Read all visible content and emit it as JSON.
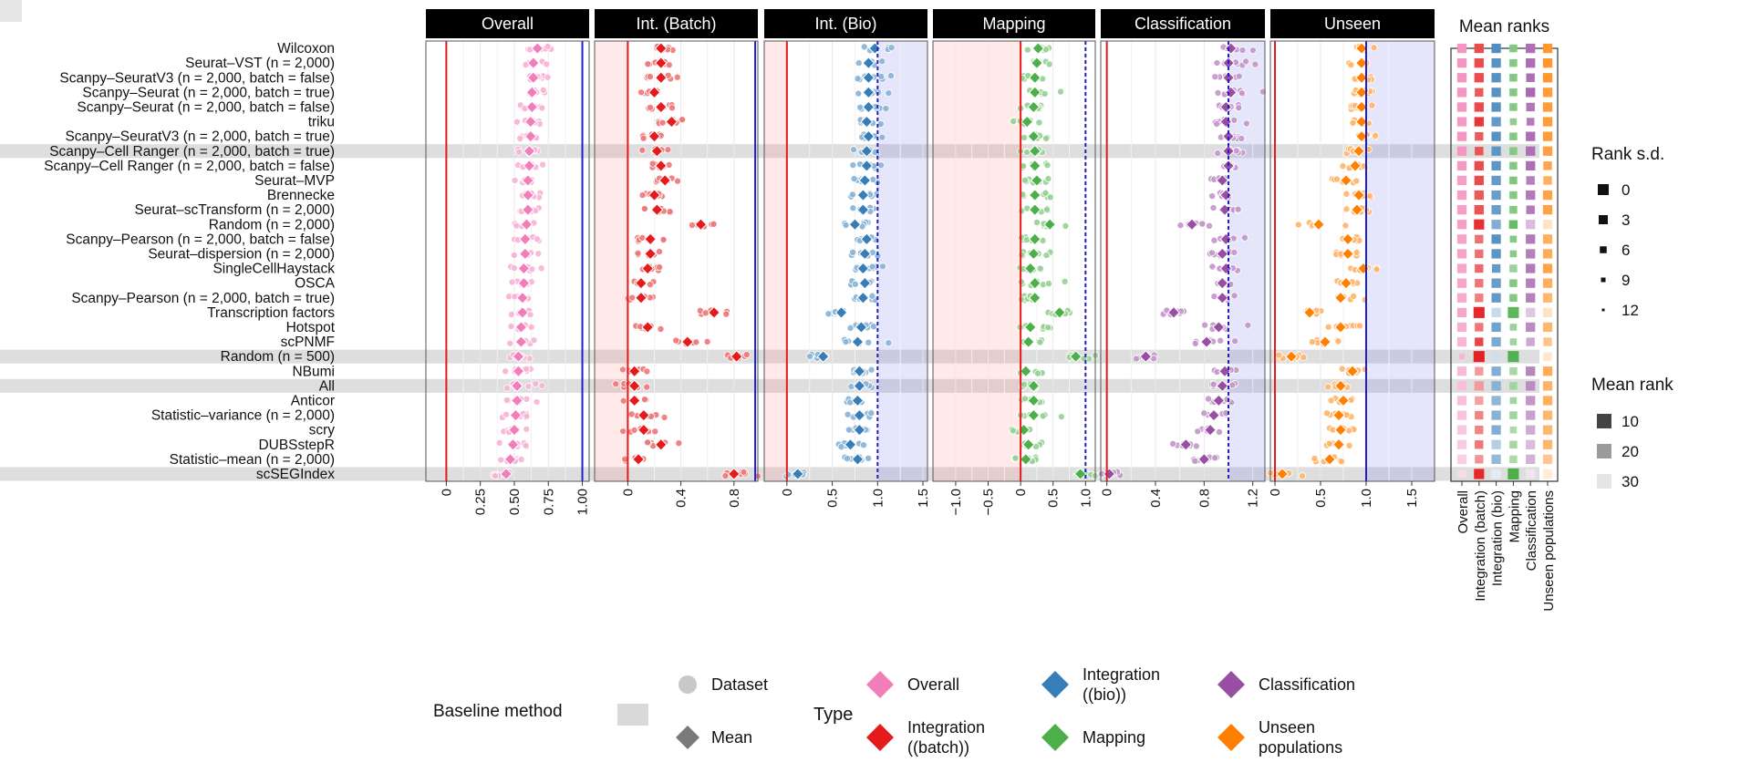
{
  "chart_data": {
    "type": "scatter",
    "methods": [
      "Wilcoxon",
      "Seurat–VST (n = 2,000)",
      "Scanpy–SeuratV3 (n = 2,000, batch = false)",
      "Scanpy–Seurat (n = 2,000, batch = true)",
      "Scanpy–Seurat (n = 2,000, batch = false)",
      "triku",
      "Scanpy–SeuratV3 (n = 2,000, batch = true)",
      "Scanpy–Cell Ranger (n = 2,000, batch = true)",
      "Scanpy–Cell Ranger (n = 2,000, batch = false)",
      "Seurat–MVP",
      "Brennecke",
      "Seurat–scTransform (n = 2,000)",
      "Random (n = 2,000)",
      "Scanpy–Pearson (n = 2,000, batch = false)",
      "Seurat–dispersion (n = 2,000)",
      "SingleCellHaystack",
      "OSCA",
      "Scanpy–Pearson (n = 2,000, batch = true)",
      "Transcription factors",
      "Hotspot",
      "scPNMF",
      "Random (n = 500)",
      "NBumi",
      "All",
      "Anticor",
      "Statistic–variance (n = 2,000)",
      "scry",
      "DUBSstepR",
      "Statistic–mean (n = 2,000)",
      "scSEGIndex"
    ],
    "baseline_methods": [
      "Scanpy–Cell Ranger (n = 2,000, batch = true)",
      "Random (n = 500)",
      "All",
      "scSEGIndex"
    ],
    "panels": [
      {
        "title": "Overall",
        "color": "#F17EB8",
        "xlim": [
          -0.15,
          1.05
        ],
        "ticks": [
          0,
          0.25,
          0.5,
          0.75,
          1.0
        ],
        "tick_labels": [
          "0",
          "0.25",
          "0.50",
          "0.75",
          "1.00"
        ],
        "red_line": 0,
        "blue_line": 1.0,
        "dashed": false,
        "shade": [],
        "means": [
          0.67,
          0.64,
          0.64,
          0.63,
          0.63,
          0.62,
          0.62,
          0.61,
          0.61,
          0.6,
          0.6,
          0.6,
          0.59,
          0.58,
          0.58,
          0.57,
          0.57,
          0.56,
          0.56,
          0.55,
          0.55,
          0.53,
          0.53,
          0.52,
          0.52,
          0.51,
          0.5,
          0.49,
          0.47,
          0.44
        ]
      },
      {
        "title": "Int. (Batch)",
        "color": "#E41A1C",
        "xlim": [
          -0.25,
          0.98
        ],
        "ticks": [
          0,
          0.4,
          0.8
        ],
        "tick_labels": [
          "0",
          "0.4",
          "0.8"
        ],
        "red_line": 0,
        "blue_line": 0.96,
        "dashed": false,
        "shade": [
          -0.25,
          0
        ],
        "means": [
          0.25,
          0.25,
          0.25,
          0.2,
          0.25,
          0.33,
          0.2,
          0.22,
          0.25,
          0.28,
          0.2,
          0.22,
          0.55,
          0.17,
          0.17,
          0.15,
          0.1,
          0.1,
          0.65,
          0.15,
          0.45,
          0.82,
          0.05,
          0.05,
          0.05,
          0.12,
          0.12,
          0.25,
          0.08,
          0.8
        ]
      },
      {
        "title": "Int. (Bio)",
        "color": "#377EB8",
        "xlim": [
          -0.25,
          1.55
        ],
        "ticks": [
          0,
          0.5,
          1.0,
          1.5
        ],
        "tick_labels": [
          "0",
          "0.5",
          "1.0",
          "1.5"
        ],
        "red_line": 0,
        "blue_line": 1.0,
        "dashed": true,
        "shade": [
          -0.25,
          0,
          1.0,
          1.55
        ],
        "means": [
          0.97,
          0.9,
          0.9,
          0.9,
          0.9,
          0.88,
          0.9,
          0.88,
          0.88,
          0.86,
          0.84,
          0.84,
          0.75,
          0.88,
          0.86,
          0.84,
          0.86,
          0.84,
          0.6,
          0.82,
          0.78,
          0.4,
          0.8,
          0.8,
          0.78,
          0.8,
          0.8,
          0.7,
          0.78,
          0.12
        ]
      },
      {
        "title": "Mapping",
        "color": "#4DAF4A",
        "xlim": [
          -1.35,
          1.15
        ],
        "ticks": [
          -1.0,
          -0.5,
          0,
          0.5,
          1.0
        ],
        "tick_labels": [
          "−1.0",
          "−0.5",
          "0",
          "0.5",
          "1.0"
        ],
        "red_line": 0,
        "blue_line": 1.0,
        "dashed": true,
        "shade": [
          -1.35,
          0
        ],
        "means": [
          0.27,
          0.25,
          0.22,
          0.22,
          0.2,
          0.1,
          0.2,
          0.22,
          0.22,
          0.25,
          0.22,
          0.22,
          0.45,
          0.22,
          0.2,
          0.15,
          0.22,
          0.22,
          0.6,
          0.15,
          0.12,
          0.85,
          0.08,
          0.2,
          0.2,
          0.2,
          0.05,
          0.12,
          0.08,
          0.92
        ]
      },
      {
        "title": "Classification",
        "color": "#984EA3",
        "xlim": [
          -0.05,
          1.3
        ],
        "ticks": [
          0,
          0.4,
          0.8,
          1.2
        ],
        "tick_labels": [
          "0",
          "0.4",
          "0.8",
          "1.2"
        ],
        "red_line": 0,
        "blue_line": 1.0,
        "dashed": true,
        "shade": [
          1.0,
          1.3
        ],
        "means": [
          1.02,
          1.0,
          1.0,
          1.02,
          0.98,
          0.98,
          1.0,
          1.0,
          1.0,
          0.95,
          0.98,
          0.97,
          0.7,
          0.98,
          0.95,
          0.98,
          0.95,
          0.95,
          0.55,
          0.92,
          0.82,
          0.32,
          0.97,
          0.95,
          0.92,
          0.88,
          0.85,
          0.65,
          0.8,
          0.02
        ]
      },
      {
        "title": "Unseen",
        "color": "#FF7F00",
        "xlim": [
          -0.05,
          1.75
        ],
        "ticks": [
          0,
          0.5,
          1.0,
          1.5
        ],
        "tick_labels": [
          "0",
          "0.5",
          "1.0",
          "1.5"
        ],
        "red_line": 0,
        "blue_line": 1.0,
        "dashed": false,
        "shade": [
          1.0,
          1.75
        ],
        "means": [
          0.95,
          0.95,
          0.95,
          0.95,
          0.95,
          0.95,
          0.95,
          0.92,
          0.88,
          0.78,
          0.92,
          0.9,
          0.48,
          0.8,
          0.8,
          0.97,
          0.78,
          0.72,
          0.38,
          0.72,
          0.55,
          0.18,
          0.85,
          0.72,
          0.75,
          0.7,
          0.72,
          0.7,
          0.6,
          0.08
        ]
      }
    ],
    "mean_ranks": {
      "title": "Mean ranks",
      "columns": [
        "Overall",
        "Integration (batch)",
        "Integration (bio)",
        "Mapping",
        "Classification",
        "Unseen populations"
      ],
      "colors": [
        "#F17EB8",
        "#E41A1C",
        "#377EB8",
        "#4DAF4A",
        "#984EA3",
        "#FF7F00"
      ],
      "rank": [
        [
          8,
          9,
          6,
          12,
          8,
          8
        ],
        [
          8,
          9,
          7,
          12,
          8,
          8
        ],
        [
          8,
          9,
          7,
          12,
          8,
          8
        ],
        [
          8,
          11,
          7,
          12,
          7,
          9
        ],
        [
          8,
          9,
          7,
          12,
          9,
          9
        ],
        [
          9,
          6,
          9,
          14,
          10,
          9
        ],
        [
          8,
          11,
          7,
          12,
          8,
          9
        ],
        [
          8,
          10,
          8,
          12,
          8,
          10
        ],
        [
          9,
          9,
          8,
          12,
          8,
          11
        ],
        [
          10,
          9,
          9,
          11,
          11,
          14
        ],
        [
          10,
          11,
          10,
          12,
          10,
          11
        ],
        [
          10,
          10,
          10,
          12,
          10,
          11
        ],
        [
          10,
          5,
          14,
          7,
          22,
          27
        ],
        [
          11,
          14,
          7,
          12,
          10,
          14
        ],
        [
          11,
          14,
          8,
          13,
          11,
          13
        ],
        [
          12,
          13,
          9,
          16,
          10,
          11
        ],
        [
          12,
          15,
          10,
          12,
          11,
          14
        ],
        [
          13,
          16,
          9,
          12,
          11,
          16
        ],
        [
          12,
          4,
          25,
          5,
          24,
          27
        ],
        [
          14,
          15,
          11,
          16,
          13,
          16
        ],
        [
          16,
          8,
          13,
          17,
          18,
          19
        ],
        [
          15,
          3,
          26,
          3,
          28,
          28
        ],
        [
          17,
          20,
          14,
          18,
          12,
          13
        ],
        [
          18,
          20,
          15,
          17,
          13,
          15
        ],
        [
          18,
          21,
          16,
          17,
          15,
          14
        ],
        [
          19,
          17,
          15,
          17,
          17,
          16
        ],
        [
          20,
          17,
          14,
          19,
          19,
          16
        ],
        [
          21,
          15,
          22,
          18,
          22,
          16
        ],
        [
          22,
          19,
          17,
          19,
          20,
          20
        ],
        [
          25,
          4,
          30,
          2,
          30,
          30
        ]
      ],
      "sd": [
        [
          3,
          3,
          3,
          5,
          3,
          3
        ],
        [
          3,
          3,
          3,
          5,
          3,
          3
        ],
        [
          3,
          3,
          3,
          5,
          4,
          3
        ],
        [
          3,
          4,
          3,
          5,
          3,
          3
        ],
        [
          3,
          3,
          3,
          5,
          4,
          3
        ],
        [
          3,
          3,
          3,
          6,
          5,
          3
        ],
        [
          3,
          4,
          3,
          5,
          3,
          3
        ],
        [
          3,
          4,
          3,
          5,
          3,
          3
        ],
        [
          3,
          3,
          3,
          5,
          3,
          4
        ],
        [
          3,
          3,
          3,
          5,
          4,
          4
        ],
        [
          3,
          3,
          3,
          5,
          3,
          3
        ],
        [
          3,
          3,
          3,
          5,
          4,
          3
        ],
        [
          3,
          2,
          3,
          4,
          3,
          3
        ],
        [
          3,
          4,
          3,
          6,
          3,
          3
        ],
        [
          3,
          4,
          3,
          6,
          3,
          3
        ],
        [
          3,
          4,
          4,
          5,
          3,
          3
        ],
        [
          3,
          4,
          3,
          5,
          3,
          3
        ],
        [
          3,
          4,
          3,
          5,
          3,
          3
        ],
        [
          3,
          1,
          3,
          1,
          3,
          3
        ],
        [
          3,
          4,
          3,
          6,
          3,
          3
        ],
        [
          3,
          4,
          3,
          6,
          4,
          4
        ],
        [
          8,
          1,
          4,
          1,
          12,
          4
        ],
        [
          3,
          4,
          3,
          5,
          3,
          3
        ],
        [
          3,
          3,
          3,
          5,
          3,
          3
        ],
        [
          3,
          4,
          3,
          6,
          3,
          3
        ],
        [
          3,
          4,
          3,
          5,
          3,
          3
        ],
        [
          3,
          4,
          3,
          6,
          3,
          3
        ],
        [
          3,
          4,
          3,
          5,
          3,
          3
        ],
        [
          3,
          4,
          3,
          5,
          3,
          3
        ],
        [
          5,
          2,
          3,
          1,
          3,
          3
        ]
      ]
    },
    "legend": {
      "dataset": "Dataset",
      "mean": "Mean",
      "type_title": "Type",
      "baseline_title": "Baseline method",
      "types": [
        "Overall",
        "Integration (batch)",
        "Integration (bio)",
        "Mapping",
        "Classification",
        "Unseen populations"
      ]
    },
    "rank_sd_legend": {
      "title": "Rank s.d.",
      "values": [
        "0",
        "3",
        "6",
        "9",
        "12"
      ]
    },
    "mean_rank_legend": {
      "title": "Mean rank",
      "values": [
        "10",
        "20",
        "30"
      ]
    }
  }
}
